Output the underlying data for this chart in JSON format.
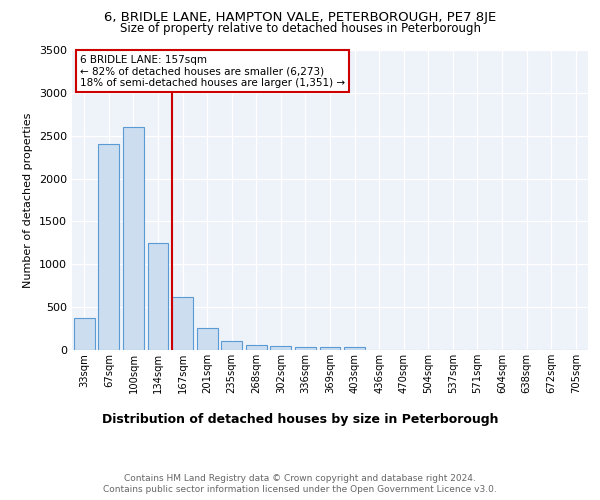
{
  "title1": "6, BRIDLE LANE, HAMPTON VALE, PETERBOROUGH, PE7 8JE",
  "title2": "Size of property relative to detached houses in Peterborough",
  "xlabel": "Distribution of detached houses by size in Peterborough",
  "ylabel": "Number of detached properties",
  "bins": [
    "33sqm",
    "67sqm",
    "100sqm",
    "134sqm",
    "167sqm",
    "201sqm",
    "235sqm",
    "268sqm",
    "302sqm",
    "336sqm",
    "369sqm",
    "403sqm",
    "436sqm",
    "470sqm",
    "504sqm",
    "537sqm",
    "571sqm",
    "604sqm",
    "638sqm",
    "672sqm",
    "705sqm"
  ],
  "values": [
    370,
    2400,
    2600,
    1250,
    620,
    260,
    100,
    55,
    50,
    40,
    30,
    30,
    0,
    0,
    0,
    0,
    0,
    0,
    0,
    0,
    0
  ],
  "bar_color": "#ccddf0",
  "bar_edge_color": "#5b9bd5",
  "red_line_bin_index": 4,
  "red_line_color": "#cc0000",
  "annotation_text": "6 BRIDLE LANE: 157sqm\n← 82% of detached houses are smaller (6,273)\n18% of semi-detached houses are larger (1,351) →",
  "annotation_box_color": "white",
  "annotation_border_color": "#cc0000",
  "footer1": "Contains HM Land Registry data © Crown copyright and database right 2024.",
  "footer2": "Contains public sector information licensed under the Open Government Licence v3.0.",
  "ylim": [
    0,
    3500
  ],
  "plot_bg_color": "#eef2f9"
}
